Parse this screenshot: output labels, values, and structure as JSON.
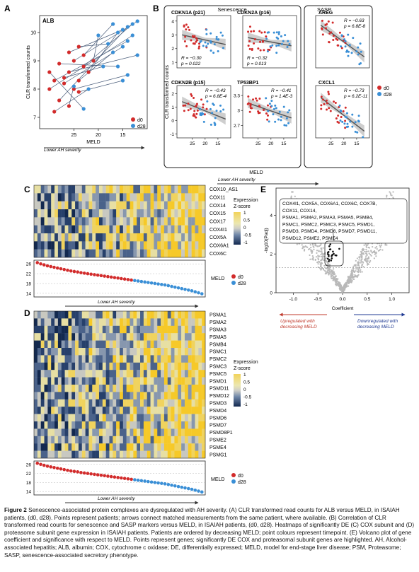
{
  "panel_letters": {
    "A": "A",
    "B": "B",
    "C": "C",
    "D": "D",
    "E": "E"
  },
  "chart_data": [
    {
      "panel": "A",
      "type": "scatter",
      "title": "ALB",
      "xlabel": "MELD",
      "ylabel": "CLR transformed counts",
      "xlim": [
        32,
        10
      ],
      "ylim": [
        6.6,
        10.6
      ],
      "xticks": [
        25,
        20,
        15
      ],
      "yticks": [
        7,
        8,
        9,
        10
      ],
      "arrow_label": "Lower AH severity",
      "legend": [
        {
          "name": "d0",
          "color": "#d22b2b"
        },
        {
          "name": "d28",
          "color": "#3a8fd6"
        }
      ],
      "d0": [
        [
          29,
          7.2
        ],
        [
          28,
          7.6
        ],
        [
          30,
          8.0
        ],
        [
          27,
          8.2
        ],
        [
          26,
          8.6
        ],
        [
          28,
          8.9
        ],
        [
          25,
          8.0
        ],
        [
          24,
          8.3
        ],
        [
          23,
          8.8
        ],
        [
          26,
          9.3
        ],
        [
          24,
          9.5
        ],
        [
          22,
          8.6
        ],
        [
          27,
          8.4
        ],
        [
          29,
          8.3
        ],
        [
          25,
          9.0
        ],
        [
          23,
          9.2
        ],
        [
          21,
          9.0
        ],
        [
          30,
          8.6
        ],
        [
          26,
          7.4
        ],
        [
          24,
          7.9
        ]
      ],
      "d28": [
        [
          22,
          8.0
        ],
        [
          14,
          10.2
        ],
        [
          13,
          9.9
        ],
        [
          15,
          9.5
        ],
        [
          12,
          9.2
        ],
        [
          16,
          8.8
        ],
        [
          14,
          8.5
        ],
        [
          17,
          9.3
        ],
        [
          13,
          10.3
        ],
        [
          15,
          10.1
        ],
        [
          18,
          9.6
        ],
        [
          16,
          10.0
        ],
        [
          19,
          8.8
        ],
        [
          14,
          9.7
        ],
        [
          12,
          10.4
        ],
        [
          17,
          10.3
        ],
        [
          20,
          9.9
        ],
        [
          23,
          7.3
        ],
        [
          25,
          8.1
        ],
        [
          15,
          8.3
        ]
      ],
      "links": [
        [
          0,
          0
        ],
        [
          1,
          1
        ],
        [
          2,
          2
        ],
        [
          3,
          3
        ],
        [
          4,
          4
        ],
        [
          5,
          5
        ],
        [
          6,
          6
        ],
        [
          7,
          7
        ],
        [
          8,
          8
        ],
        [
          9,
          9
        ],
        [
          10,
          10
        ],
        [
          11,
          11
        ],
        [
          12,
          12
        ],
        [
          13,
          13
        ],
        [
          14,
          14
        ],
        [
          15,
          15
        ],
        [
          16,
          16
        ],
        [
          17,
          17
        ],
        [
          18,
          18
        ],
        [
          19,
          19
        ]
      ]
    },
    {
      "panel": "B",
      "type": "scatter",
      "group_left": "Senescence",
      "group_right": "SASP",
      "xlabel": "MELD",
      "ylabel": "CLR transformed counts",
      "arrow_label": "Lower AH severity",
      "legend": [
        {
          "name": "d0",
          "color": "#d22b2b"
        },
        {
          "name": "d28",
          "color": "#3a8fd6"
        }
      ],
      "subplots": [
        {
          "name": "CDKN1A (p21)",
          "r": "R = −0.30",
          "p": "p = 0.022",
          "stats_pos": "bl",
          "yticks": [
            1,
            2,
            3,
            4
          ],
          "ylim": [
            0.6,
            4.4
          ],
          "fit": [
            3.0,
            2.3
          ]
        },
        {
          "name": "CDKN2A (p16)",
          "r": "R = −0.32",
          "p": "p = 0.013",
          "stats_pos": "bl",
          "yticks": [],
          "ylim": [
            0.6,
            4.4
          ],
          "fit": [
            2.8,
            2.2
          ]
        },
        {
          "name": "AREG",
          "r": "R = −0.63",
          "p": "p = 6.8E-8",
          "stats_pos": "tr",
          "yticks": [],
          "ylim": [
            0.6,
            4.4
          ],
          "fit": [
            3.7,
            1.4
          ]
        },
        {
          "name": "CDKN2B (p15)",
          "r": "R = −0.43",
          "p": "p = 6.8E-4",
          "stats_pos": "tr",
          "yticks": [
            -1,
            0,
            1,
            2
          ],
          "ylim": [
            -1.3,
            2.6
          ],
          "fit": [
            1.4,
            0.1
          ]
        },
        {
          "name": "TP53BP1",
          "r": "R = −0.41",
          "p": "p = 1.4E-3",
          "stats_pos": "tr",
          "yticks": [
            2.7,
            3.0,
            3.3
          ],
          "ylim": [
            2.45,
            3.5
          ],
          "fit": [
            3.15,
            2.85
          ]
        },
        {
          "name": "CXCL1",
          "r": "R = −0.73",
          "p": "p = 6.2E-11",
          "stats_pos": "tr",
          "yticks": [],
          "ylim": [
            -1.3,
            2.6
          ],
          "fit": [
            1.7,
            -0.8
          ]
        }
      ],
      "xticks": [
        25,
        20,
        15
      ]
    },
    {
      "panel": "C",
      "type": "heatmap",
      "genes": [
        "COX10_AS1",
        "COX11",
        "COX14",
        "COX15",
        "COX17",
        "COX4I1",
        "COX5A",
        "COX6A1",
        "COX6C"
      ],
      "colorbar_title": "Expression\nZ-score",
      "colorbar_ticks": [
        "1",
        "0.5",
        "0",
        "-0.5",
        "-1"
      ],
      "meld_label": "MELD",
      "meld_ticks": [
        26,
        22,
        18,
        14
      ],
      "arrow_label": "Lower AH severity",
      "legend": [
        {
          "name": "d0",
          "color": "#d22b2b"
        },
        {
          "name": "d28",
          "color": "#3a8fd6"
        }
      ],
      "meld_values": [
        26.5,
        26.0,
        25.6,
        25.2,
        24.9,
        24.6,
        24.3,
        24.0,
        23.7,
        23.4,
        23.1,
        22.9,
        22.7,
        22.4,
        22.2,
        22.0,
        21.8,
        21.6,
        21.4,
        21.2,
        21.0,
        20.8,
        20.6,
        20.4,
        20.2,
        20.0,
        19.8,
        19.6,
        19.4,
        19.2,
        19.0,
        18.8,
        18.6,
        18.4,
        18.2,
        18.0,
        17.8,
        17.6,
        17.4,
        17.1,
        16.8,
        16.5,
        16.2,
        15.9,
        15.6,
        15.3,
        15.0,
        14.6,
        14.2,
        13.8
      ]
    },
    {
      "panel": "D",
      "type": "heatmap",
      "genes": [
        "PSMA1",
        "PSMA2",
        "PSMA3",
        "PSMA5",
        "PSMB4",
        "PSMC1",
        "PSMC2",
        "PSMC3",
        "PSMC5",
        "PSMD1",
        "PSMD11",
        "PSMD12",
        "PSMD3",
        "PSMD4",
        "PSMD6",
        "PSMD7",
        "PSMD8P1",
        "PSME2",
        "PSME4",
        "PSMG1"
      ],
      "colorbar_title": "Expression\nZ-score",
      "colorbar_ticks": [
        "1",
        "0.5",
        "0",
        "-0.5",
        "-1"
      ],
      "meld_label": "MELD",
      "meld_ticks": [
        26,
        22,
        18,
        14
      ],
      "arrow_label": "Lower AH severity",
      "legend": [
        {
          "name": "d0",
          "color": "#d22b2b"
        },
        {
          "name": "d28",
          "color": "#3a8fd6"
        }
      ]
    },
    {
      "panel": "E",
      "type": "scatter",
      "subtype": "volcano",
      "xlabel": "Coefficient",
      "ylabel": "-log10(Padj)",
      "xticks": [
        "-1.0",
        "-0.5",
        "0.0",
        "0.5",
        "1.0"
      ],
      "yticks": [
        "0",
        "2",
        "4"
      ],
      "xlim": [
        -1.35,
        1.35
      ],
      "ylim": [
        0,
        5.4
      ],
      "callout_lines": [
        "COX4I1, COX5A, COX6A1, COX6C, COX7B,",
        "COX11, COX14,",
        "PSMA1, PSMA2, PSMA3, PSMA5, PSMB4,",
        "PSMC1, PSMC2, PSMC3, PSMC5, PSMD1,",
        "PSMD3, PSMD4, PSMD6, PSMD7, PSMD11,",
        "PSMD12, PSME2, PSME4"
      ],
      "left_label": [
        "Upregulated with",
        "decreasing MELD"
      ],
      "right_label": [
        "Downregulated with",
        "decreasing MELD"
      ],
      "left_color": "#c0392b",
      "right_color": "#1f3a93"
    }
  ],
  "caption": {
    "label": "Figure 2",
    "text": "  Senescence-associated protein complexes are dysregulated with AH severity. (A) CLR transformed read counts for ALB versus MELD, in ISAIAH patients, (d0, d28). Points represent patients; arrows connect matched measurements from the same patient, where available. (B) Correlation of CLR transformed read counts for senescence and SASP markers versus MELD, in ISAIAH patients, (d0, d28). Heatmaps of significantly DE (C) COX subunit and (D) proteasome subunit gene expression in ISAIAH patients. Patients are ordered by decreasing MELD; point colours represent timepoint. (E) Volcano plot of gene coefficient and significance with respect to MELD. Points represent genes; significantly DE COX and proteasomal subunit genes are highlighted. AH, Alcohol-associated hepatitis; ALB, albumin; COX, cytochrome c oxidase; DE, differentially expressed; MELD, model for end-stage liver disease; PSM, Proteasome; SASP, senescence-associated secretory phenotype."
  }
}
